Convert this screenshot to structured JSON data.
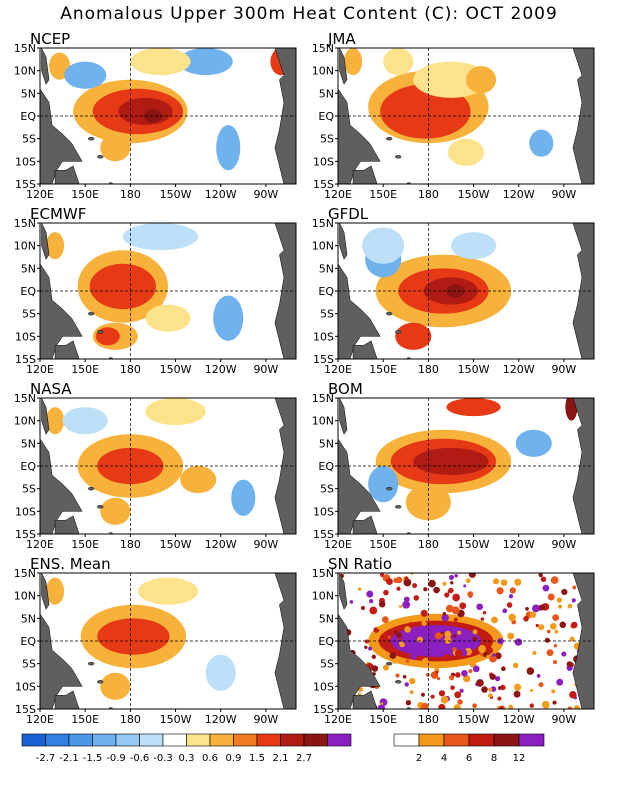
{
  "title": "Anomalous Upper 300m Heat Content (C): OCT 2009",
  "lat_labels": [
    "15N",
    "10N",
    "5N",
    "EQ",
    "5S",
    "10S",
    "15S"
  ],
  "lon_labels": [
    "120E",
    "150E",
    "180",
    "150W",
    "120W",
    "90W"
  ],
  "panels": [
    {
      "name": "NCEP"
    },
    {
      "name": "JMA"
    },
    {
      "name": "ECMWF"
    },
    {
      "name": "GFDL"
    },
    {
      "name": "NASA"
    },
    {
      "name": "BOM"
    },
    {
      "name": "ENS. Mean"
    },
    {
      "name": "SN Ratio"
    }
  ],
  "colorbar_left": {
    "labels": [
      "-2.7",
      "-2.1",
      "-1.5",
      "-0.9",
      "-0.6",
      "-0.3",
      "0.3",
      "0.6",
      "0.9",
      "1.5",
      "2.1",
      "2.7"
    ],
    "colors": [
      "#1a5fd6",
      "#2f7ee0",
      "#4a98e8",
      "#6fb2ee",
      "#96c9f3",
      "#bde0f8",
      "#ffffff",
      "#fce28a",
      "#f7b23b",
      "#f07b22",
      "#e63a16",
      "#b01b14",
      "#8a1412",
      "#8b1fbf"
    ]
  },
  "colorbar_right": {
    "labels": [
      "2",
      "4",
      "6",
      "8",
      "12"
    ],
    "colors": [
      "#ffffff",
      "#f39a1a",
      "#e8561b",
      "#c21c15",
      "#8c1512",
      "#8b1fbf"
    ]
  },
  "colors": {
    "land": "#5f5f5f",
    "background": "#ffffff"
  }
}
